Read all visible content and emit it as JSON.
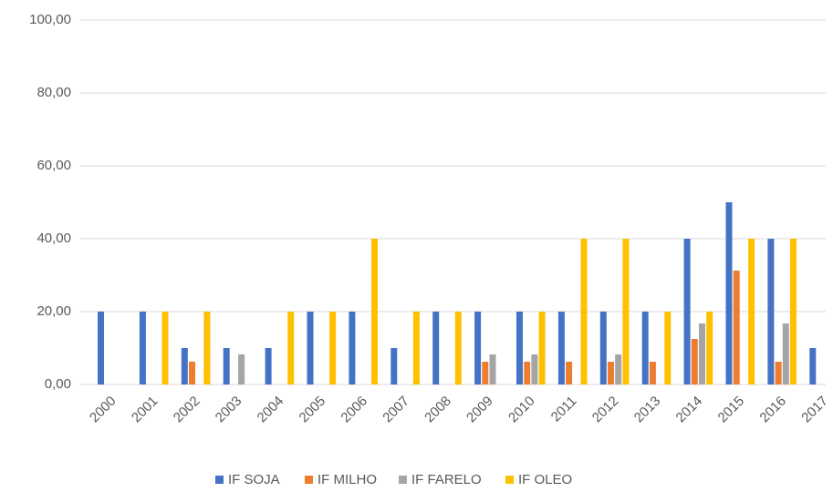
{
  "chart_data": {
    "type": "bar",
    "categories": [
      "2000",
      "2001",
      "2002",
      "2003",
      "2004",
      "2005",
      "2006",
      "2007",
      "2008",
      "2009",
      "2010",
      "2011",
      "2012",
      "2013",
      "2014",
      "2015",
      "2016",
      "2017"
    ],
    "series": [
      {
        "name": "IF SOJA",
        "color": "#4472c4",
        "values": [
          20,
          20,
          10,
          10,
          10,
          20,
          20,
          10,
          20,
          20,
          20,
          20,
          20,
          20,
          40,
          50,
          40,
          10
        ]
      },
      {
        "name": "IF MILHO",
        "color": "#ed7d31",
        "values": [
          0,
          0,
          6.25,
          0,
          0,
          0,
          0,
          0,
          0,
          6.25,
          6.25,
          6.25,
          6.25,
          6.25,
          12.5,
          31.25,
          6.25,
          0
        ]
      },
      {
        "name": "IF FARELO",
        "color": "#a5a5a5",
        "values": [
          0,
          0,
          0,
          8.25,
          0,
          0,
          0,
          0,
          0,
          8.25,
          8.25,
          0,
          8.25,
          0,
          16.75,
          0,
          16.75,
          0
        ]
      },
      {
        "name": "IF OLEO",
        "color": "#ffc000",
        "values": [
          0,
          20,
          20,
          0,
          20,
          20,
          40,
          20,
          20,
          0,
          20,
          40,
          40,
          20,
          20,
          40,
          40,
          0
        ]
      }
    ],
    "ylim": [
      0,
      100
    ],
    "yticks": [
      {
        "value": 0,
        "label": "0,00"
      },
      {
        "value": 20,
        "label": "20,00"
      },
      {
        "value": 40,
        "label": "40,00"
      },
      {
        "value": 60,
        "label": "60,00"
      },
      {
        "value": 80,
        "label": "80,00"
      },
      {
        "value": 100,
        "label": "100,00"
      }
    ],
    "grid": true,
    "legend": "bottom"
  }
}
